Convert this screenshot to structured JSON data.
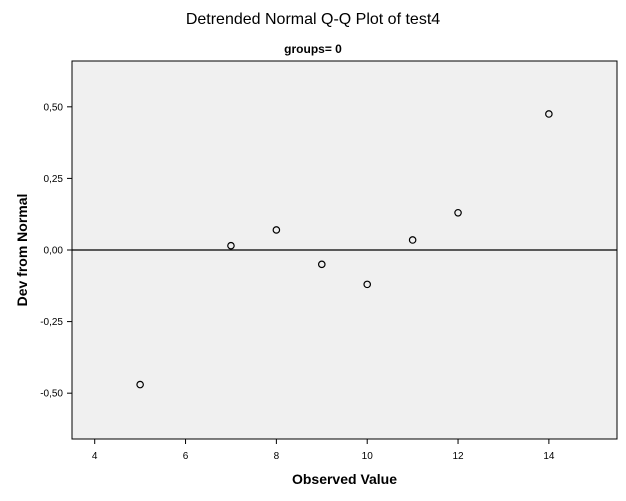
{
  "chart_data": {
    "type": "scatter",
    "title": "Detrended Normal Q-Q Plot of test4",
    "subtitle": "groups= 0",
    "xlabel": "Observed Value",
    "ylabel": "Dev from Normal",
    "xlim": [
      3.5,
      15.5
    ],
    "ylim": [
      -0.66,
      0.66
    ],
    "x_ticks": [
      4,
      6,
      8,
      10,
      12,
      14
    ],
    "y_ticks": [
      -0.5,
      -0.25,
      0.0,
      0.25,
      0.5
    ],
    "x_tick_labels": [
      "4",
      "6",
      "8",
      "10",
      "12",
      "14"
    ],
    "y_tick_labels": [
      "-0,50",
      "-0,25",
      "0,00",
      "0,25",
      "0,50"
    ],
    "reference_line_y": 0,
    "grid": false,
    "plot_background": "#f0f0f0",
    "points": [
      {
        "x": 5,
        "y": -0.47
      },
      {
        "x": 7,
        "y": 0.015
      },
      {
        "x": 8,
        "y": 0.07
      },
      {
        "x": 9,
        "y": -0.05
      },
      {
        "x": 10,
        "y": -0.12
      },
      {
        "x": 11,
        "y": 0.035
      },
      {
        "x": 12,
        "y": 0.13
      },
      {
        "x": 14,
        "y": 0.475
      }
    ]
  }
}
